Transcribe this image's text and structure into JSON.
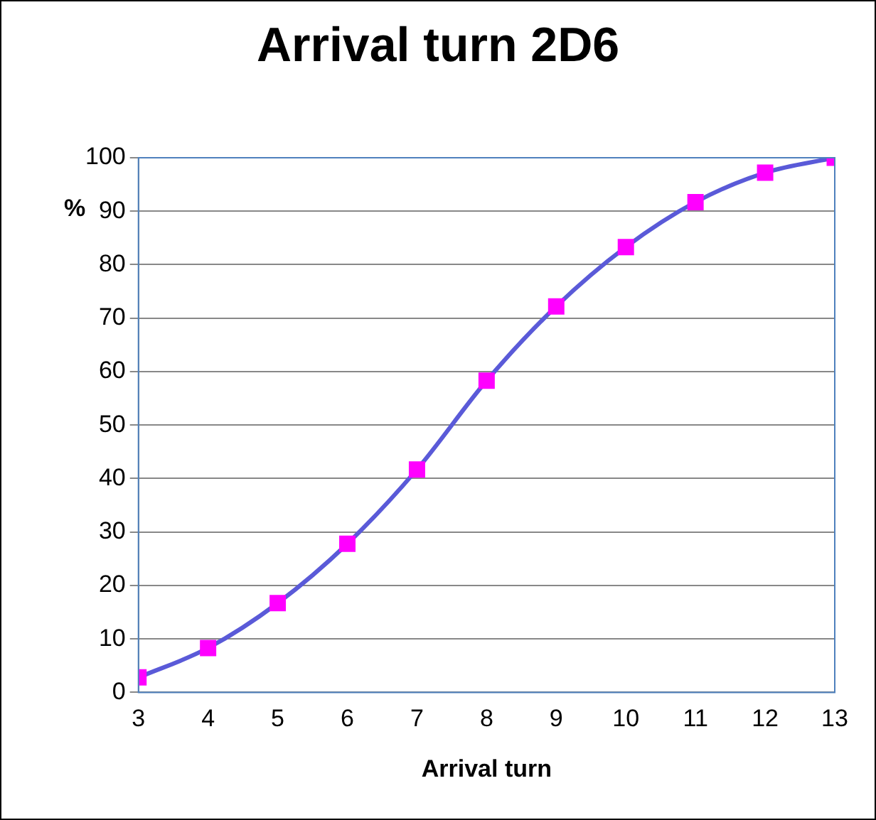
{
  "chart_data": {
    "type": "line",
    "title": "Arrival turn 2D6",
    "xlabel": "Arrival turn",
    "ylabel": "%",
    "x": [
      3,
      4,
      5,
      6,
      7,
      8,
      9,
      10,
      11,
      12,
      13
    ],
    "series": [
      {
        "color": "#ff00ff",
        "values": [
          2.8,
          8.3,
          16.7,
          27.8,
          41.7,
          58.3,
          72.2,
          83.3,
          91.7,
          97.2,
          100
        ]
      }
    ],
    "xlim": [
      3,
      13
    ],
    "xticks": [
      3,
      4,
      5,
      6,
      7,
      8,
      9,
      10,
      11,
      12,
      13
    ],
    "ylim": [
      0,
      100
    ],
    "yticks": [
      0,
      10,
      20,
      30,
      40,
      50,
      60,
      70,
      80,
      90,
      100
    ],
    "grid": "y",
    "legend": false,
    "marker": "square",
    "line_style": "solid"
  }
}
